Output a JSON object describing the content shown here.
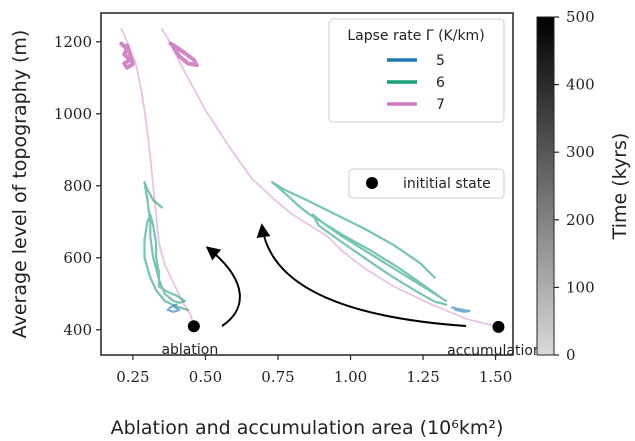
{
  "chart_data": {
    "type": "line",
    "xlabel": "Ablation and accumulation area (10⁶km²)",
    "ylabel": "Average level of topography (m)",
    "xlim": [
      0.14,
      1.56
    ],
    "ylim": [
      330,
      1280
    ],
    "xticks": [
      0.25,
      0.5,
      0.75,
      1.0,
      1.25,
      1.5
    ],
    "xtick_labels": [
      "0.25",
      "0.50",
      "0.75",
      "1.00",
      "1.25",
      "1.50"
    ],
    "yticks": [
      400,
      600,
      800,
      1000,
      1200
    ],
    "ytick_labels": [
      "400",
      "600",
      "800",
      "1000",
      "1200"
    ],
    "legend": {
      "title": "Lapse rate Γ (K/km)",
      "placement": "top-right",
      "entries": [
        {
          "label": "5",
          "color": "#1f77b4"
        },
        {
          "label": "6",
          "color": "#1b9e77"
        },
        {
          "label": "7",
          "color": "#cc79c0"
        }
      ]
    },
    "initial_state_legend": {
      "label": "inititial state",
      "placement": "right"
    },
    "colorbar": {
      "label": "Time (kyrs)",
      "min": 0,
      "max": 500,
      "ticks": [
        0,
        100,
        200,
        300,
        400,
        500
      ],
      "tick_labels": [
        "0",
        "100",
        "200",
        "300",
        "400",
        "500"
      ],
      "colors": [
        "#d9d9d9",
        "#000000"
      ]
    },
    "initial_states": [
      {
        "x": 0.46,
        "y": 410,
        "label": "ablation"
      },
      {
        "x": 1.51,
        "y": 408,
        "label": "accumulation"
      }
    ],
    "series": [
      {
        "name": "7",
        "color": "#cc79c0",
        "role": "ablation",
        "x": [
          0.46,
          0.45,
          0.42,
          0.39,
          0.36,
          0.34,
          0.33,
          0.32,
          0.31,
          0.3,
          0.29,
          0.28,
          0.27,
          0.26,
          0.25,
          0.24,
          0.23,
          0.22,
          0.21
        ],
        "y": [
          410,
          440,
          480,
          530,
          580,
          640,
          720,
          800,
          880,
          950,
          1010,
          1060,
          1100,
          1140,
          1160,
          1180,
          1200,
          1220,
          1235
        ]
      },
      {
        "name": "7",
        "color": "#cc79c0",
        "role": "accumulation",
        "x": [
          1.51,
          1.4,
          1.28,
          1.15,
          1.05,
          0.97,
          0.92,
          0.86,
          0.8,
          0.74,
          0.66,
          0.58,
          0.5,
          0.44,
          0.4,
          0.37,
          0.35
        ],
        "y": [
          408,
          430,
          470,
          520,
          570,
          620,
          660,
          690,
          720,
          760,
          820,
          910,
          1010,
          1100,
          1160,
          1210,
          1235
        ]
      },
      {
        "name": "7",
        "color": "#cc79c0",
        "role": "final-ablation",
        "x": [
          0.21,
          0.23,
          0.22,
          0.24,
          0.22,
          0.23,
          0.25,
          0.23
        ],
        "y": [
          1195,
          1180,
          1165,
          1150,
          1140,
          1128,
          1138,
          1190
        ]
      },
      {
        "name": "7",
        "color": "#cc79c0",
        "role": "final-accumulation",
        "x": [
          0.38,
          0.4,
          0.43,
          0.46,
          0.47,
          0.44,
          0.41,
          0.39
        ],
        "y": [
          1195,
          1185,
          1168,
          1150,
          1135,
          1140,
          1160,
          1185
        ]
      },
      {
        "name": "6",
        "color": "#1b9e77",
        "role": "ablation",
        "x": [
          0.44,
          0.4,
          0.36,
          0.33,
          0.31,
          0.29,
          0.29,
          0.3,
          0.31,
          0.32,
          0.33,
          0.33,
          0.34,
          0.34,
          0.37,
          0.4,
          0.43,
          0.41,
          0.39,
          0.36,
          0.34,
          0.32,
          0.31,
          0.31,
          0.3,
          0.29,
          0.3,
          0.32,
          0.35
        ],
        "y": [
          455,
          465,
          480,
          510,
          545,
          600,
          650,
          700,
          720,
          690,
          640,
          600,
          560,
          520,
          505,
          495,
          480,
          475,
          480,
          500,
          540,
          600,
          660,
          700,
          760,
          810,
          790,
          760,
          740
        ]
      },
      {
        "name": "6",
        "color": "#1b9e77",
        "role": "accumulation",
        "x": [
          1.33,
          1.29,
          1.22,
          1.13,
          1.03,
          0.95,
          0.89,
          0.87,
          0.9,
          0.97,
          1.07,
          1.17,
          1.25,
          1.3,
          1.33,
          1.31,
          1.25,
          1.17,
          1.07,
          0.97,
          0.9,
          0.86,
          0.82,
          0.78,
          0.73,
          0.77,
          0.85,
          0.95,
          1.05,
          1.15,
          1.24,
          1.29
        ],
        "y": [
          470,
          478,
          510,
          555,
          610,
          655,
          690,
          720,
          700,
          660,
          610,
          560,
          520,
          495,
          480,
          490,
          525,
          570,
          620,
          665,
          700,
          720,
          745,
          775,
          810,
          790,
          760,
          720,
          680,
          635,
          585,
          545
        ]
      },
      {
        "name": "5",
        "color": "#1f77b4",
        "role": "ablation",
        "x": [
          0.4,
          0.38,
          0.37,
          0.39,
          0.41,
          0.39
        ],
        "y": [
          470,
          463,
          455,
          450,
          455,
          465
        ]
      },
      {
        "name": "5",
        "color": "#1f77b4",
        "role": "accumulation",
        "x": [
          1.35,
          1.37,
          1.39,
          1.41,
          1.39,
          1.36
        ],
        "y": [
          462,
          458,
          455,
          452,
          450,
          456
        ]
      }
    ]
  }
}
